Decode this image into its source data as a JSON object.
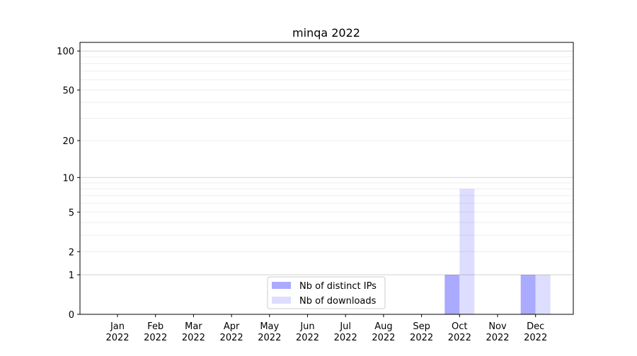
{
  "chart_data": {
    "type": "bar",
    "title": "minqa 2022",
    "xlabel": "",
    "ylabel": "",
    "categories": [
      "Jan\n2022",
      "Feb\n2022",
      "Mar\n2022",
      "Apr\n2022",
      "May\n2022",
      "Jun\n2022",
      "Jul\n2022",
      "Aug\n2022",
      "Sep\n2022",
      "Oct\n2022",
      "Nov\n2022",
      "Dec\n2022"
    ],
    "series": [
      {
        "name": "Nb of distinct IPs",
        "color": "#aaaaff",
        "values": [
          0,
          0,
          0,
          0,
          0,
          0,
          0,
          0,
          0,
          1,
          0,
          1
        ]
      },
      {
        "name": "Nb of downloads",
        "color": "#ddddff",
        "values": [
          0,
          0,
          0,
          0,
          0,
          0,
          0,
          0,
          0,
          8,
          0,
          1
        ]
      }
    ],
    "yscale": "log(1+y)",
    "ylim": [
      0,
      116
    ],
    "yticks": [
      0,
      1,
      2,
      5,
      10,
      20,
      50,
      100
    ],
    "ytick_labels": [
      "0",
      "1",
      "2",
      "5",
      "10",
      "20",
      "50",
      "100"
    ],
    "grid": {
      "major": [
        1,
        10,
        100
      ],
      "minor": [
        2,
        3,
        4,
        5,
        6,
        7,
        8,
        9,
        20,
        30,
        40,
        50,
        60,
        70,
        80,
        90
      ]
    },
    "legend": {
      "placement": "lower-center"
    }
  }
}
